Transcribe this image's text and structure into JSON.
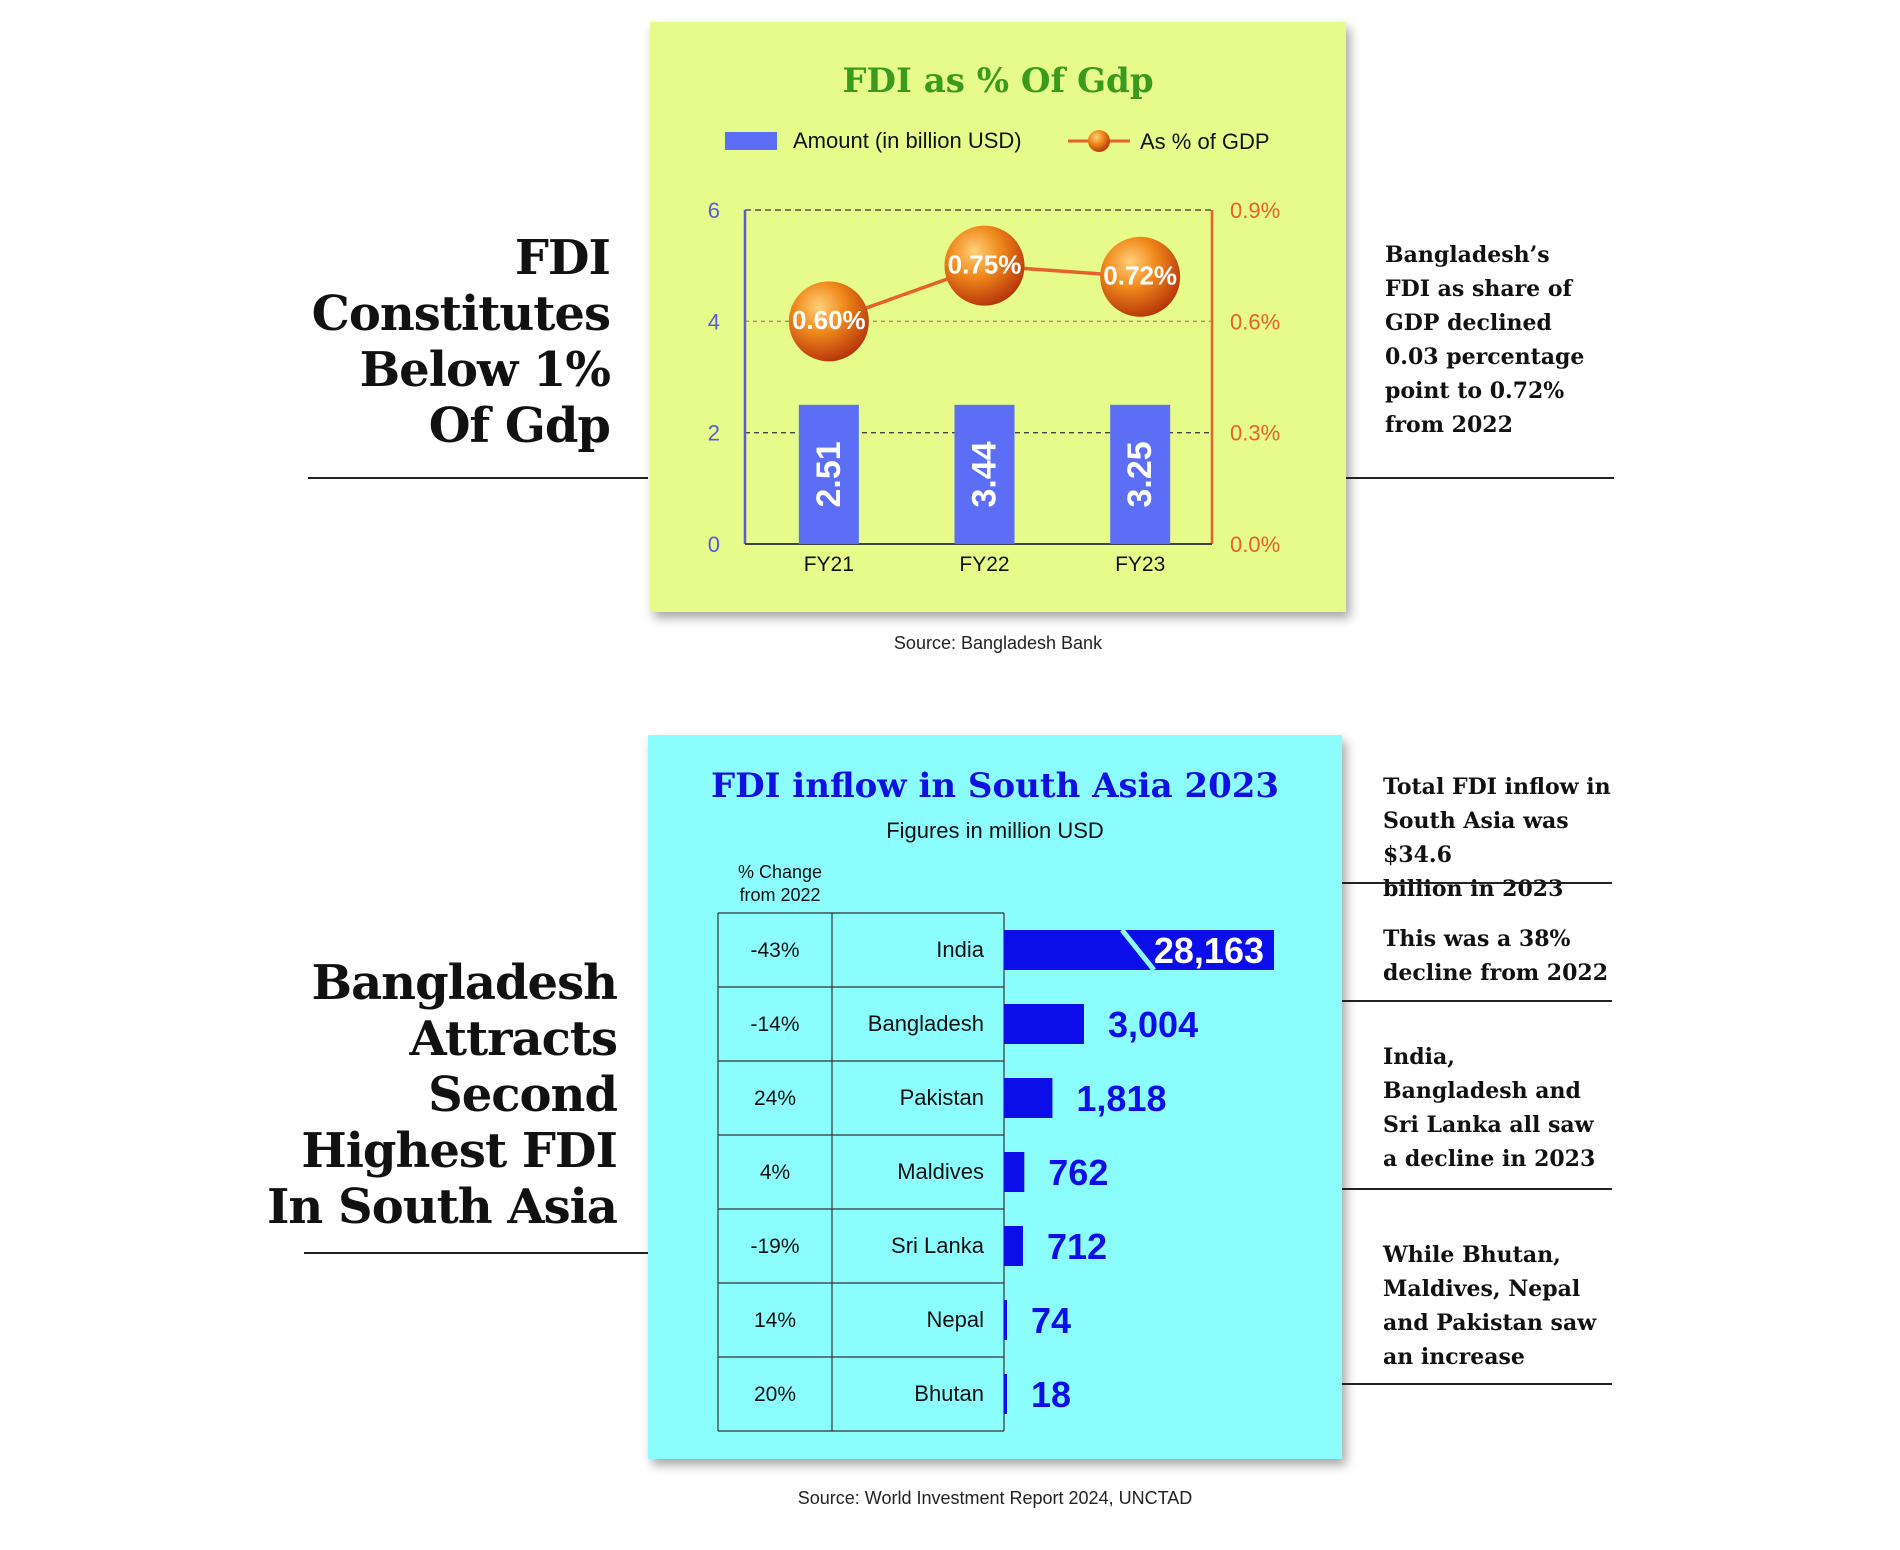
{
  "section1": {
    "headline": [
      "FDI",
      "Constitutes",
      "Below 1%",
      "Of Gdp"
    ],
    "note": [
      "Bangladesh’s",
      "FDI as share of",
      "GDP declined",
      "0.03 percentage",
      "point to 0.72%",
      "from 2022"
    ],
    "source": "Source: Bangladesh Bank"
  },
  "section2": {
    "headline": [
      "Bangladesh",
      "Attracts",
      "Second",
      "Highest FDI",
      "In South Asia"
    ],
    "notes": [
      [
        "Total FDI inflow in",
        "South Asia was $34.6",
        "billion in 2023"
      ],
      [
        "This was a 38%",
        "decline from 2022"
      ],
      [
        "India,",
        "Bangladesh and",
        "Sri Lanka all saw",
        "a decline in 2023"
      ],
      [
        "While Bhutan,",
        "Maldives, Nepal",
        "and Pakistan saw",
        "an increase"
      ]
    ],
    "source": "Source: World Investment Report 2024, UNCTAD"
  },
  "colors": {
    "panel1_bg": "#e6fb8a",
    "panel2_bg": "#8cfdfd",
    "bar_blue": "#5b6ef5",
    "line_orange": "#e8612c",
    "title_green": "#3a9a1e",
    "title_blue": "#1010e0",
    "bar2_blue": "#0b0ee8"
  },
  "chart_data": [
    {
      "type": "bar",
      "title": "FDI as % Of Gdp",
      "legend": [
        "Amount (in billion USD)",
        "As % of GDP"
      ],
      "categories": [
        "FY21",
        "FY22",
        "FY23"
      ],
      "series": [
        {
          "name": "Amount (in billion USD)",
          "axis": "left",
          "values": [
            2.51,
            3.44,
            3.25
          ],
          "labels": [
            "2.51",
            "3.44",
            "3.25"
          ]
        },
        {
          "name": "As % of GDP",
          "axis": "right",
          "type": "line",
          "values": [
            0.6,
            0.75,
            0.72
          ],
          "labels": [
            "0.60%",
            "0.75%",
            "0.72%"
          ]
        }
      ],
      "bar_display_height_note": "bars drawn at equal height in original",
      "ylim_left": [
        0,
        6
      ],
      "yticks_left": [
        "0",
        "2",
        "4",
        "6"
      ],
      "ylim_right": [
        0,
        0.9
      ],
      "yticks_right": [
        "0.0%",
        "0.3%",
        "0.6%",
        "0.9%"
      ]
    },
    {
      "type": "bar",
      "title": "FDI inflow in South Asia 2023",
      "subtitle": "Figures in million USD",
      "change_header": [
        "% Change",
        "from 2022"
      ],
      "categories": [
        "India",
        "Bangladesh",
        "Pakistan",
        "Maldives",
        "Sri Lanka",
        "Nepal",
        "Bhutan"
      ],
      "values": [
        28163,
        3004,
        1818,
        762,
        712,
        74,
        18
      ],
      "labels": [
        "28,163",
        "3,004",
        "1,818",
        "762",
        "712",
        "74",
        "18"
      ],
      "change": [
        "-43%",
        "-14%",
        "24%",
        "4%",
        "-19%",
        "14%",
        "20%"
      ],
      "axis_break": "India"
    }
  ]
}
